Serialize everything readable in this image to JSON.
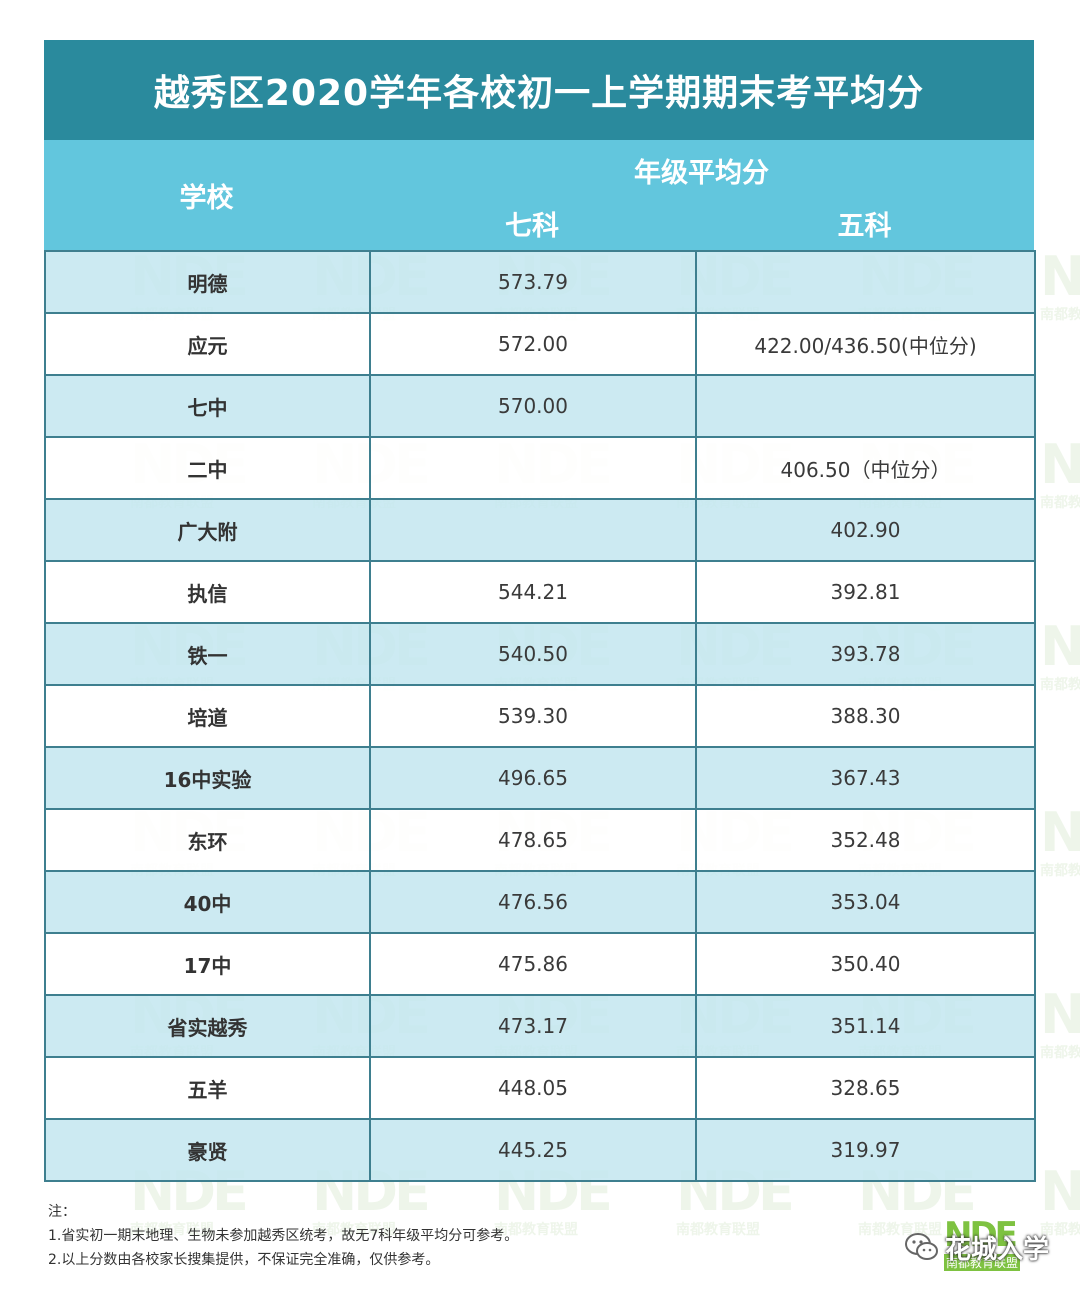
{
  "title": "越秀区2020学年各校初一上学期期末考平均分",
  "header": {
    "school": "学校",
    "group": "年级平均分",
    "seven": "七科",
    "five": "五科"
  },
  "rows": [
    {
      "school": "明德",
      "seven": "573.79",
      "five": ""
    },
    {
      "school": "应元",
      "seven": "572.00",
      "five": "422.00/436.50(中位分)"
    },
    {
      "school": "七中",
      "seven": "570.00",
      "five": ""
    },
    {
      "school": "二中",
      "seven": "",
      "five": "406.50（中位分）"
    },
    {
      "school": "广大附",
      "seven": "",
      "five": "402.90"
    },
    {
      "school": "执信",
      "seven": "544.21",
      "five": "392.81"
    },
    {
      "school": "铁一",
      "seven": "540.50",
      "five": "393.78"
    },
    {
      "school": "培道",
      "seven": "539.30",
      "five": "388.30"
    },
    {
      "school": "16中实验",
      "seven": "496.65",
      "five": "367.43"
    },
    {
      "school": "东环",
      "seven": "478.65",
      "five": "352.48"
    },
    {
      "school": "40中",
      "seven": "476.56",
      "five": "353.04"
    },
    {
      "school": "17中",
      "seven": "475.86",
      "five": "350.40"
    },
    {
      "school": "省实越秀",
      "seven": "473.17",
      "five": "351.14"
    },
    {
      "school": "五羊",
      "seven": "448.05",
      "five": "328.65"
    },
    {
      "school": "豪贤",
      "seven": "445.25",
      "five": "319.97"
    }
  ],
  "notes": {
    "label": "注：",
    "line1": "1.省实初一期末地理、生物未参加越秀区统考，故无7科年级平均分可参考。",
    "line2": "2.以上分数由各校家长搜集提供，不保证完全准确，仅供参考。"
  },
  "brand": {
    "account_name": "花城入学",
    "logo_text": "NDE",
    "logo_sub": "南都教育联盟"
  },
  "watermark": {
    "text": "NDE",
    "sub": "南都教育联盟"
  },
  "colors": {
    "title_bg": "#2a8a9d",
    "header_bg": "#62c6dd",
    "row_tint": "#c3e6f0",
    "border": "#3e7f8f",
    "logo_green": "#7ec241"
  }
}
